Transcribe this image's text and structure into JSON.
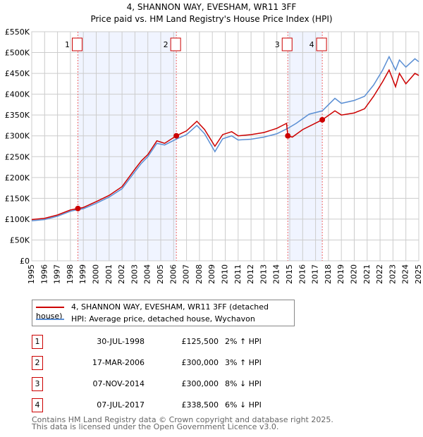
{
  "chart_data": {
    "type": "line",
    "title": "4, SHANNON WAY, EVESHAM, WR11 3FF",
    "subtitle": "Price paid vs. HM Land Registry's House Price Index (HPI)",
    "xlim": [
      1995,
      2025
    ],
    "ylim": [
      0,
      550000
    ],
    "x_ticks": [
      "1995",
      "1996",
      "1997",
      "1998",
      "1999",
      "2000",
      "2001",
      "2002",
      "2003",
      "2004",
      "2005",
      "2006",
      "2007",
      "2008",
      "2009",
      "2010",
      "2011",
      "2012",
      "2013",
      "2014",
      "2015",
      "2016",
      "2017",
      "2018",
      "2019",
      "2020",
      "2021",
      "2022",
      "2023",
      "2024",
      "2025"
    ],
    "y_ticks": [
      "£0",
      "£50K",
      "£100K",
      "£150K",
      "£200K",
      "£250K",
      "£300K",
      "£350K",
      "£400K",
      "£450K",
      "£500K",
      "£550K"
    ],
    "grid": true,
    "series": [
      {
        "name": "4, SHANNON WAY, EVESHAM, WR11 3FF (detached house)",
        "color": "#cc0000",
        "points": [
          [
            1995,
            99000
          ],
          [
            1996,
            102000
          ],
          [
            1997,
            110000
          ],
          [
            1998,
            122000
          ],
          [
            1998.58,
            125500
          ],
          [
            1999,
            128000
          ],
          [
            2000,
            142000
          ],
          [
            2001,
            157000
          ],
          [
            2002,
            178000
          ],
          [
            2003,
            220000
          ],
          [
            2003.5,
            240000
          ],
          [
            2004,
            255000
          ],
          [
            2004.7,
            288000
          ],
          [
            2005.3,
            282000
          ],
          [
            2006.2,
            300000
          ],
          [
            2007,
            312000
          ],
          [
            2007.8,
            335000
          ],
          [
            2008.4,
            315000
          ],
          [
            2009.2,
            275000
          ],
          [
            2009.8,
            303000
          ],
          [
            2010.5,
            310000
          ],
          [
            2011,
            300000
          ],
          [
            2012,
            303000
          ],
          [
            2013,
            308000
          ],
          [
            2014,
            318000
          ],
          [
            2014.75,
            330000
          ],
          [
            2014.85,
            300000
          ],
          [
            2015.2,
            297000
          ],
          [
            2016,
            315000
          ],
          [
            2017.52,
            338500
          ],
          [
            2018.5,
            360000
          ],
          [
            2019,
            350000
          ],
          [
            2020,
            355000
          ],
          [
            2020.8,
            365000
          ],
          [
            2021.5,
            395000
          ],
          [
            2022.2,
            430000
          ],
          [
            2022.7,
            458000
          ],
          [
            2023.2,
            418000
          ],
          [
            2023.5,
            450000
          ],
          [
            2024,
            425000
          ],
          [
            2024.7,
            450000
          ],
          [
            2025,
            445000
          ]
        ]
      },
      {
        "name": "HPI: Average price, detached house, Wychavon",
        "color": "#5b8fd4",
        "points": [
          [
            1995,
            96000
          ],
          [
            1996,
            99000
          ],
          [
            1997,
            107000
          ],
          [
            1998,
            119000
          ],
          [
            1998.58,
            123000
          ],
          [
            1999,
            125000
          ],
          [
            2000,
            138000
          ],
          [
            2001,
            153000
          ],
          [
            2002,
            173000
          ],
          [
            2003,
            214000
          ],
          [
            2003.5,
            234000
          ],
          [
            2004,
            250000
          ],
          [
            2004.7,
            282000
          ],
          [
            2005.3,
            278000
          ],
          [
            2006.2,
            292000
          ],
          [
            2007,
            303000
          ],
          [
            2007.8,
            325000
          ],
          [
            2008.4,
            305000
          ],
          [
            2009.2,
            262000
          ],
          [
            2009.8,
            293000
          ],
          [
            2010.5,
            300000
          ],
          [
            2011,
            290000
          ],
          [
            2012,
            292000
          ],
          [
            2013,
            297000
          ],
          [
            2014,
            305000
          ],
          [
            2014.85,
            318000
          ],
          [
            2015.5,
            330000
          ],
          [
            2016.5,
            352000
          ],
          [
            2017.52,
            360000
          ],
          [
            2018.5,
            390000
          ],
          [
            2019,
            378000
          ],
          [
            2020,
            385000
          ],
          [
            2020.8,
            395000
          ],
          [
            2021.5,
            422000
          ],
          [
            2022.2,
            458000
          ],
          [
            2022.7,
            490000
          ],
          [
            2023.2,
            458000
          ],
          [
            2023.5,
            482000
          ],
          [
            2024,
            465000
          ],
          [
            2024.7,
            485000
          ],
          [
            2025,
            478000
          ]
        ]
      }
    ],
    "sales": [
      {
        "label": "1",
        "x": 1998.58,
        "value": 125500,
        "date": "30-JUL-1998",
        "price": "£125,500",
        "delta": "2% ↑ HPI"
      },
      {
        "label": "2",
        "x": 2006.21,
        "value": 300000,
        "date": "17-MAR-2006",
        "price": "£300,000",
        "delta": "3% ↑ HPI"
      },
      {
        "label": "3",
        "x": 2014.85,
        "value": 300000,
        "date": "07-NOV-2014",
        "price": "£300,000",
        "delta": "8% ↓ HPI"
      },
      {
        "label": "4",
        "x": 2017.52,
        "value": 338500,
        "date": "07-JUL-2017",
        "price": "£338,500",
        "delta": "6% ↓ HPI"
      }
    ],
    "shaded_ranges": [
      [
        1998.58,
        2006.21
      ],
      [
        2014.85,
        2017.52
      ]
    ]
  },
  "footer": {
    "line1": "Contains HM Land Registry data © Crown copyright and database right 2025.",
    "line2": "This data is licensed under the Open Government Licence v3.0."
  }
}
